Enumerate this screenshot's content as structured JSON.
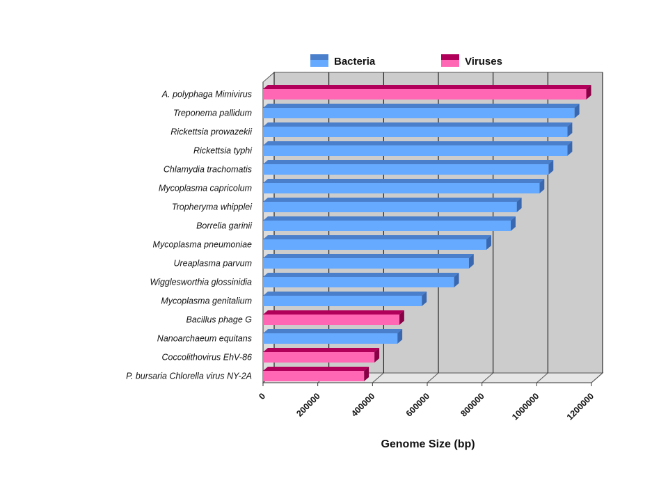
{
  "chart_data": {
    "type": "bar",
    "orientation": "horizontal",
    "three_d": true,
    "xlabel": "Genome Size (bp)",
    "xlim": [
      0,
      1200000
    ],
    "xticks": [
      "0",
      "200000",
      "400000",
      "600000",
      "800000",
      "1000000",
      "1200000"
    ],
    "xtick_values": [
      0,
      200000,
      400000,
      600000,
      800000,
      1000000,
      1200000
    ],
    "grid": true,
    "legend": {
      "placement": "top",
      "entries": [
        {
          "name": "Bacteria",
          "color": "#66aaff"
        },
        {
          "name": "Viruses",
          "color": "#ff66b3"
        }
      ]
    },
    "categories": [
      "A. polyphaga Mimivirus",
      "Treponema pallidum",
      "Rickettsia prowazekii",
      "Rickettsia typhi",
      "Chlamydia trachomatis",
      "Mycoplasma capricolum",
      "Tropheryma whipplei",
      "Borrelia garinii",
      "Mycoplasma pneumoniae",
      "Ureaplasma parvum",
      "Wigglesworthia glossinidia",
      "Mycoplasma genitalium",
      "Bacillus phage G",
      "Nanoarchaeum equitans",
      "Coccolithovirus EhV-86",
      "P. bursaria Chlorella virus NY-2A"
    ],
    "values": [
      1181000,
      1138000,
      1112000,
      1112000,
      1043000,
      1010000,
      927000,
      905000,
      816000,
      752000,
      698000,
      580000,
      498000,
      491000,
      407000,
      369000
    ],
    "groups": [
      "Viruses",
      "Bacteria",
      "Bacteria",
      "Bacteria",
      "Bacteria",
      "Bacteria",
      "Bacteria",
      "Bacteria",
      "Bacteria",
      "Bacteria",
      "Bacteria",
      "Bacteria",
      "Viruses",
      "Bacteria",
      "Viruses",
      "Viruses"
    ]
  },
  "colors": {
    "bacteria_face": "#66aaff",
    "bacteria_top": "#4a7fcc",
    "bacteria_end": "#3a68b0",
    "viruses_face": "#ff66b3",
    "viruses_top": "#b0005a",
    "viruses_end": "#8a0046",
    "plot_bg": "#cccccc",
    "side_wall": "#dcdcdc",
    "floor": "#e6e6e6",
    "grid": "#000000"
  }
}
